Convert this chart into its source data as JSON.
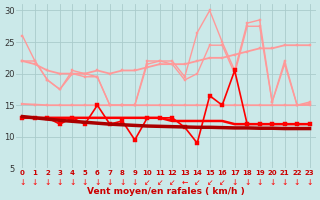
{
  "x": [
    0,
    1,
    2,
    3,
    4,
    5,
    6,
    7,
    8,
    9,
    10,
    11,
    12,
    13,
    14,
    15,
    16,
    17,
    18,
    19,
    20,
    21,
    22,
    23
  ],
  "series": [
    {
      "name": "max_gust_peak",
      "values": [
        26.0,
        22.0,
        19.0,
        17.5,
        20.5,
        20.0,
        19.5,
        15.0,
        15.0,
        15.0,
        22.0,
        22.0,
        22.0,
        19.5,
        26.5,
        30.0,
        25.0,
        20.5,
        28.0,
        28.5,
        15.5,
        22.0,
        15.0,
        15.5
      ],
      "color": "#FF9999",
      "linewidth": 1.0,
      "marker": "s",
      "markersize": 2.0,
      "zorder": 3
    },
    {
      "name": "avg_gust_peak",
      "values": [
        22.0,
        22.0,
        19.0,
        17.5,
        20.0,
        19.5,
        19.5,
        15.0,
        15.0,
        15.0,
        21.5,
        22.0,
        21.5,
        19.0,
        20.0,
        24.5,
        24.5,
        20.0,
        27.5,
        27.5,
        15.5,
        21.5,
        15.0,
        15.0
      ],
      "color": "#FF9999",
      "linewidth": 1.0,
      "marker": "s",
      "markersize": 2.0,
      "zorder": 3
    },
    {
      "name": "trend_gust_upper",
      "values": [
        22.0,
        21.5,
        20.5,
        20.0,
        20.0,
        20.0,
        20.5,
        20.0,
        20.5,
        20.5,
        21.0,
        21.5,
        21.5,
        21.5,
        22.0,
        22.5,
        22.5,
        23.0,
        23.5,
        24.0,
        24.0,
        24.5,
        24.5,
        24.5
      ],
      "color": "#FF9999",
      "linewidth": 1.3,
      "marker": "s",
      "markersize": 1.8,
      "zorder": 2
    },
    {
      "name": "trend_gust_lower",
      "values": [
        15.2,
        15.1,
        15.0,
        15.0,
        15.0,
        15.0,
        15.0,
        15.0,
        15.0,
        15.0,
        15.0,
        15.0,
        15.0,
        15.0,
        15.0,
        15.0,
        15.0,
        15.0,
        15.0,
        15.0,
        15.0,
        15.0,
        15.0,
        15.2
      ],
      "color": "#FF9999",
      "linewidth": 1.3,
      "marker": "s",
      "markersize": 1.8,
      "zorder": 2
    },
    {
      "name": "wind_inst",
      "values": [
        13.0,
        13.0,
        13.0,
        12.0,
        13.0,
        12.0,
        15.0,
        12.0,
        12.5,
        9.5,
        13.0,
        13.0,
        13.0,
        11.5,
        9.0,
        16.5,
        15.0,
        20.5,
        12.0,
        12.0,
        12.0,
        12.0,
        12.0,
        12.0
      ],
      "color": "#FF0000",
      "linewidth": 1.2,
      "marker": "s",
      "markersize": 2.5,
      "zorder": 4
    },
    {
      "name": "trend_wind",
      "values": [
        13.2,
        13.0,
        12.8,
        12.6,
        12.45,
        12.3,
        12.15,
        12.0,
        11.9,
        11.8,
        11.7,
        11.65,
        11.6,
        11.55,
        11.5,
        11.5,
        11.45,
        11.4,
        11.4,
        11.35,
        11.35,
        11.3,
        11.3,
        11.3
      ],
      "color": "#AA0000",
      "linewidth": 2.5,
      "marker": null,
      "markersize": 0,
      "zorder": 5
    },
    {
      "name": "avg_wind_line",
      "values": [
        13.0,
        13.0,
        13.0,
        13.0,
        13.0,
        13.0,
        13.0,
        13.0,
        13.0,
        13.0,
        13.0,
        13.0,
        12.5,
        12.5,
        12.5,
        12.5,
        12.5,
        12.0,
        12.0,
        12.0,
        12.0,
        12.0,
        12.0,
        12.0
      ],
      "color": "#FF0000",
      "linewidth": 1.8,
      "marker": null,
      "markersize": 0,
      "zorder": 4
    }
  ],
  "xlabel": "Vent moyen/en rafales ( km/h )",
  "xlim_min": -0.5,
  "xlim_max": 23.5,
  "ylim_min": 5,
  "ylim_max": 31,
  "yticks": [
    5,
    10,
    15,
    20,
    25,
    30
  ],
  "xticks": [
    0,
    1,
    2,
    3,
    4,
    5,
    6,
    7,
    8,
    9,
    10,
    11,
    12,
    13,
    14,
    15,
    16,
    17,
    18,
    19,
    20,
    21,
    22,
    23
  ],
  "bg_color": "#CBE9E9",
  "grid_color": "#AACCCC",
  "label_color": "#CC0000",
  "tick_color": "#333333",
  "arrow_color": "#FF0000"
}
